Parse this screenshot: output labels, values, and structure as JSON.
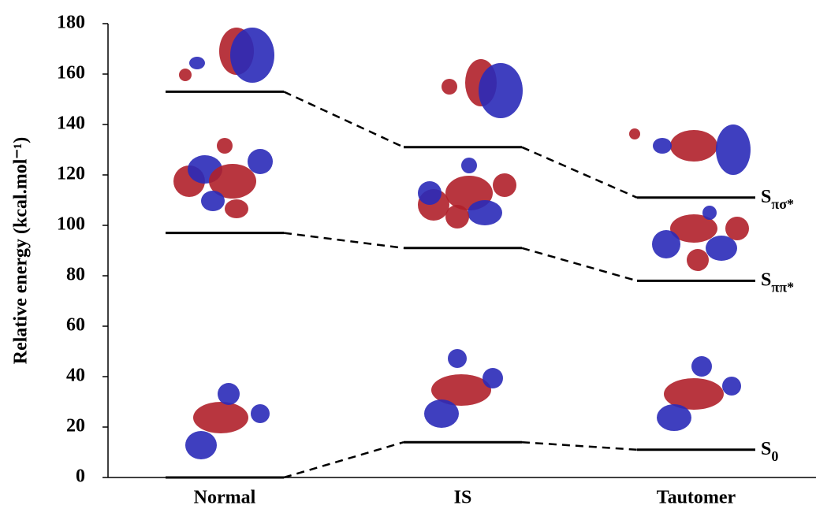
{
  "chart_data": {
    "type": "energy-level",
    "y_label": "Relative energy (kcal.mol⁻¹)",
    "categories": [
      "Normal",
      "IS",
      "Tautomer"
    ],
    "series": [
      {
        "name": "S0",
        "color": "#000000",
        "values": [
          0,
          14,
          11
        ]
      },
      {
        "name": "Sππ*",
        "color": "#000000",
        "values": [
          97,
          91,
          78
        ]
      },
      {
        "name": "Sπσ*",
        "color": "#000000",
        "values": [
          153,
          131,
          111
        ]
      }
    ],
    "ylim": [
      0,
      180
    ],
    "yticks": [
      0,
      20,
      40,
      60,
      80,
      100,
      120,
      140,
      160,
      180
    ],
    "grid": false
  }
}
